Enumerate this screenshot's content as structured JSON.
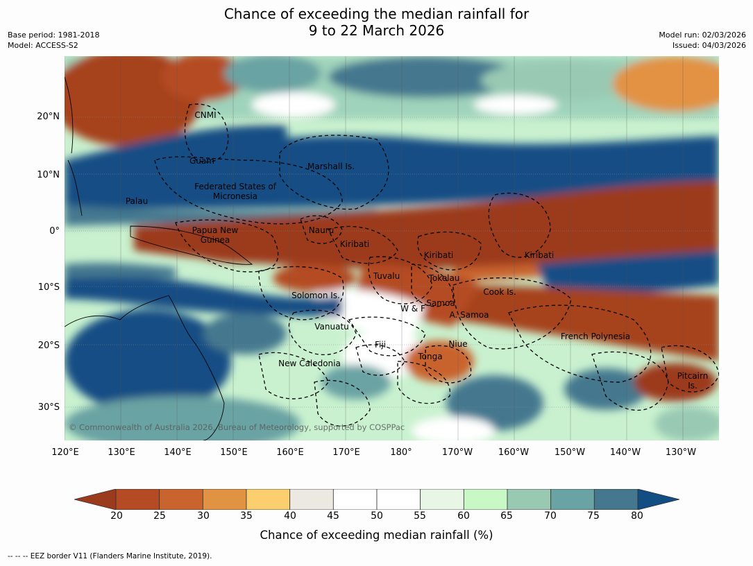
{
  "title": {
    "line1": "Chance of exceeding the median rainfall for",
    "line2": "9 to 22 March 2026"
  },
  "meta": {
    "base_period": "Base period: 1981-2018",
    "model": "Model: ACCESS-S2",
    "model_run": "Model run: 02/03/2026",
    "issued": "Issued: 04/03/2026"
  },
  "map": {
    "lat_ticks": [
      "20°N",
      "10°N",
      "0°",
      "10°S",
      "20°S",
      "30°S"
    ],
    "lon_ticks": [
      "120°E",
      "130°E",
      "140°E",
      "150°E",
      "160°E",
      "170°E",
      "180°",
      "170°W",
      "160°W",
      "150°W",
      "140°W",
      "130°W"
    ],
    "regions": [
      {
        "name": "CNMI"
      },
      {
        "name": "Guam"
      },
      {
        "name": "Marshall Is."
      },
      {
        "name": "Federated States of Micronesia"
      },
      {
        "name": "Palau"
      },
      {
        "name": "Papua New Guinea"
      },
      {
        "name": "Nauru"
      },
      {
        "name": "Kiribati"
      },
      {
        "name": "Kiribati"
      },
      {
        "name": "Kiribati"
      },
      {
        "name": "Tuvalu"
      },
      {
        "name": "Tokelau"
      },
      {
        "name": "Solomon Is."
      },
      {
        "name": "Cook Is."
      },
      {
        "name": "W & F"
      },
      {
        "name": "Samoa"
      },
      {
        "name": "A. Samoa"
      },
      {
        "name": "Vanuatu"
      },
      {
        "name": "Fiji"
      },
      {
        "name": "Niue"
      },
      {
        "name": "French Polynesia"
      },
      {
        "name": "Tonga"
      },
      {
        "name": "New Caledonia"
      },
      {
        "name": "Pitcairn Is."
      }
    ],
    "copyright": "© Commonwealth of Australia 2026, Bureau of Meteorology, supported by COSPPac"
  },
  "colorbar": {
    "ticks": [
      "20",
      "25",
      "30",
      "35",
      "40",
      "45",
      "50",
      "55",
      "60",
      "65",
      "70",
      "75",
      "80"
    ],
    "colors": [
      "#9c3a1d",
      "#b54b24",
      "#c9642e",
      "#e29243",
      "#fbcf6e",
      "#ece9e3",
      "#ffffff",
      "#ffffff",
      "#e8f6e6",
      "#c9f8c7",
      "#99c9b3",
      "#6aa3a3",
      "#45788f",
      "#124d84"
    ],
    "label": "Chance of exceeding median rainfall (%)"
  },
  "footnote": "--  --  -- EEZ border V11 (Flanders Marine Institute, 2019)."
}
